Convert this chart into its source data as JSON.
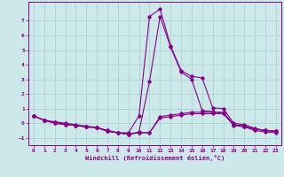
{
  "xlabel": "Windchill (Refroidissement éolien,°C)",
  "bg_color": "#cce8e8",
  "line_color": "#880088",
  "grid_color": "#aad4d4",
  "xlim": [
    -0.5,
    23.5
  ],
  "ylim": [
    -1.5,
    8.3
  ],
  "yticks": [
    -1,
    0,
    1,
    2,
    3,
    4,
    5,
    6,
    7
  ],
  "xticks": [
    0,
    1,
    2,
    3,
    4,
    5,
    6,
    7,
    8,
    9,
    10,
    11,
    12,
    13,
    14,
    15,
    16,
    17,
    18,
    19,
    20,
    21,
    22,
    23
  ],
  "curves": [
    {
      "x": [
        0,
        1,
        2,
        3,
        4,
        5,
        6,
        7,
        8,
        9,
        10,
        11,
        12,
        13,
        14,
        15,
        16,
        17,
        18,
        19,
        20,
        21,
        22,
        23
      ],
      "y": [
        0.5,
        0.2,
        0.1,
        0.0,
        -0.1,
        -0.2,
        -0.3,
        -0.55,
        -0.65,
        -0.65,
        0.5,
        7.3,
        7.8,
        5.3,
        3.6,
        3.2,
        3.1,
        1.05,
        1.0,
        0.0,
        -0.1,
        -0.35,
        -0.5,
        -0.55
      ]
    },
    {
      "x": [
        0,
        1,
        2,
        3,
        4,
        5,
        6,
        7,
        8,
        9,
        10,
        11,
        12,
        13,
        14,
        15,
        16,
        17,
        18,
        19,
        20,
        21,
        22,
        23
      ],
      "y": [
        0.5,
        0.2,
        0.0,
        -0.1,
        -0.15,
        -0.25,
        -0.3,
        -0.5,
        -0.65,
        -0.75,
        -0.6,
        2.85,
        7.3,
        5.2,
        3.5,
        3.0,
        0.85,
        0.8,
        0.65,
        -0.1,
        -0.2,
        -0.4,
        -0.5,
        -0.55
      ]
    },
    {
      "x": [
        0,
        1,
        2,
        3,
        4,
        5,
        6,
        7,
        8,
        9,
        10,
        11,
        12,
        13,
        14,
        15,
        16,
        17,
        18,
        19,
        20,
        21,
        22,
        23
      ],
      "y": [
        0.5,
        0.2,
        0.05,
        -0.05,
        -0.15,
        -0.25,
        -0.3,
        -0.55,
        -0.65,
        -0.75,
        -0.65,
        -0.65,
        0.45,
        0.55,
        0.65,
        0.75,
        0.75,
        0.75,
        0.75,
        -0.1,
        -0.2,
        -0.4,
        -0.5,
        -0.55
      ]
    },
    {
      "x": [
        0,
        1,
        2,
        3,
        4,
        5,
        6,
        7,
        8,
        9,
        10,
        11,
        12,
        13,
        14,
        15,
        16,
        17,
        18,
        19,
        20,
        21,
        22,
        23
      ],
      "y": [
        0.5,
        0.2,
        0.0,
        -0.1,
        -0.15,
        -0.25,
        -0.3,
        -0.5,
        -0.65,
        -0.75,
        -0.65,
        -0.65,
        0.35,
        0.45,
        0.55,
        0.65,
        0.65,
        0.65,
        0.65,
        -0.15,
        -0.25,
        -0.5,
        -0.6,
        -0.65
      ]
    }
  ]
}
